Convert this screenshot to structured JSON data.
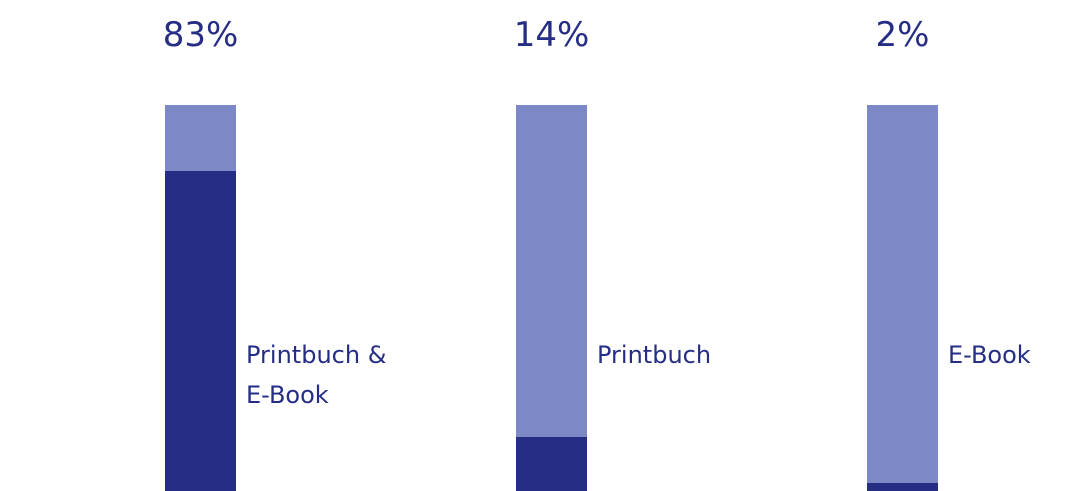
{
  "chart_data": {
    "type": "bar",
    "categories": [
      "Printbuch & E-Book",
      "Printbuch",
      "E-Book"
    ],
    "values": [
      83,
      14,
      2
    ],
    "value_labels": [
      "83%",
      "14%",
      "2%"
    ],
    "color": "#262d84",
    "track_color": "#7d88c6",
    "ylim": [
      0,
      100
    ]
  }
}
